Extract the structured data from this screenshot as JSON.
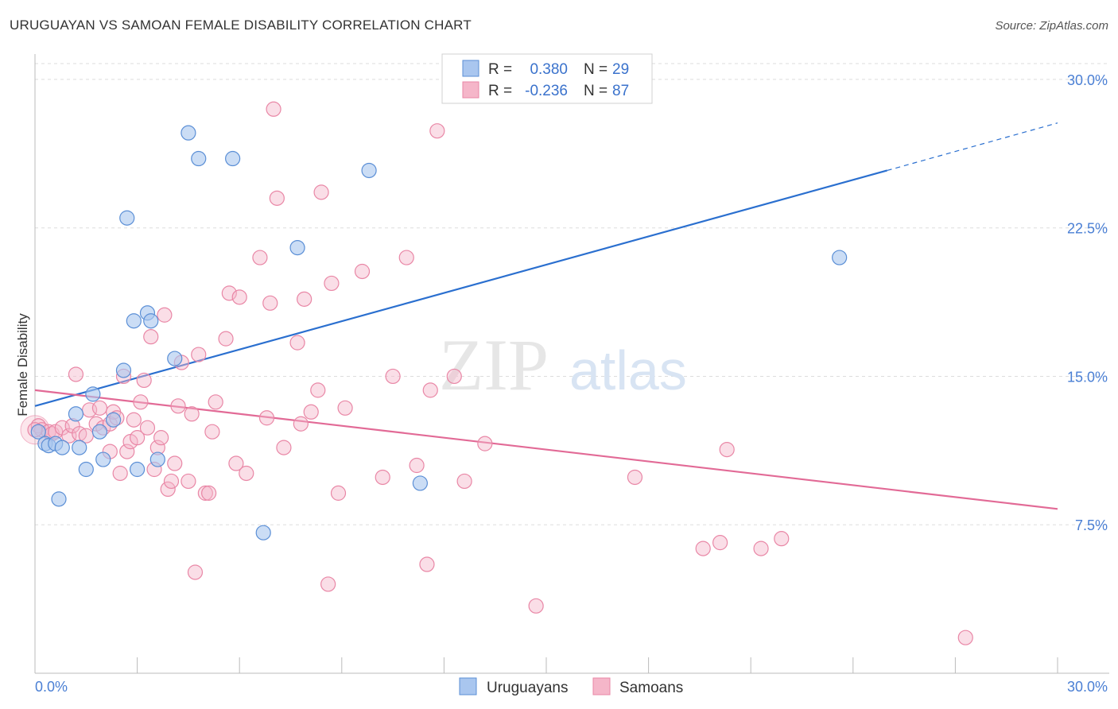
{
  "title": "URUGUAYAN VS SAMOAN FEMALE DISABILITY CORRELATION CHART",
  "source": "Source: ZipAtlas.com",
  "watermark": {
    "zip": "ZIP",
    "atlas": "atlas"
  },
  "colors": {
    "blue_fill": "#a9c6ef",
    "blue_stroke": "#5b8fd6",
    "blue_line": "#2a6fcf",
    "pink_fill": "#f5b6c9",
    "pink_stroke": "#e987a6",
    "pink_line": "#e26a96",
    "grid": "#dddddd",
    "tick_text": "#4a7fd4"
  },
  "legend": {
    "rows": [
      {
        "r_label": "R =",
        "r_value": "0.380",
        "n_label": "N =",
        "n_value": "29"
      },
      {
        "r_label": "R =",
        "r_value": "-0.236",
        "n_label": "N =",
        "n_value": "87"
      }
    ]
  },
  "bottom_legend": {
    "items": [
      "Uruguayans",
      "Samoans"
    ]
  },
  "chart_data": {
    "type": "scatter",
    "title": "URUGUAYAN VS SAMOAN FEMALE DISABILITY CORRELATION CHART",
    "xlabel": "",
    "ylabel": "Female Disability",
    "xlim": [
      0,
      30
    ],
    "ylim": [
      0,
      30.8
    ],
    "x_tick_labels": [
      "0.0%",
      "30.0%"
    ],
    "y_ticks": [
      7.5,
      15.0,
      22.5,
      30.0
    ],
    "y_tick_labels": [
      "7.5%",
      "15.0%",
      "22.5%",
      "30.0%"
    ],
    "grid": true,
    "series": [
      {
        "name": "Uruguayans",
        "r": 0.38,
        "n": 29,
        "trend": {
          "x0": 0,
          "y0": 13.5,
          "x1": 25,
          "y1": 25.4,
          "dash_x_end": 30,
          "dash_y_end": 27.8
        },
        "points": [
          [
            0.1,
            12.2
          ],
          [
            0.3,
            11.6
          ],
          [
            0.4,
            11.5
          ],
          [
            0.6,
            11.6
          ],
          [
            0.8,
            11.4
          ],
          [
            0.7,
            8.8
          ],
          [
            1.2,
            13.1
          ],
          [
            1.3,
            11.4
          ],
          [
            1.5,
            10.3
          ],
          [
            1.7,
            14.1
          ],
          [
            1.9,
            12.2
          ],
          [
            2.0,
            10.8
          ],
          [
            2.3,
            12.8
          ],
          [
            2.6,
            15.3
          ],
          [
            2.7,
            23.0
          ],
          [
            2.9,
            17.8
          ],
          [
            3.0,
            10.3
          ],
          [
            3.3,
            18.2
          ],
          [
            3.4,
            17.8
          ],
          [
            3.6,
            10.8
          ],
          [
            4.1,
            15.9
          ],
          [
            4.5,
            27.3
          ],
          [
            4.8,
            26.0
          ],
          [
            5.8,
            26.0
          ],
          [
            6.7,
            7.1
          ],
          [
            7.7,
            21.5
          ],
          [
            9.8,
            25.4
          ],
          [
            11.3,
            9.6
          ],
          [
            23.6,
            21.0
          ]
        ]
      },
      {
        "name": "Samoans",
        "r": -0.236,
        "n": 87,
        "trend": {
          "x0": 0,
          "y0": 14.3,
          "x1": 30,
          "y1": 8.3
        },
        "points": [
          [
            0.1,
            12.5
          ],
          [
            0.2,
            12.3
          ],
          [
            0.4,
            12.2
          ],
          [
            0.5,
            12.1
          ],
          [
            0.6,
            12.2
          ],
          [
            0.8,
            12.4
          ],
          [
            1.0,
            12.0
          ],
          [
            1.1,
            12.5
          ],
          [
            1.3,
            12.1
          ],
          [
            1.5,
            12.0
          ],
          [
            1.6,
            13.3
          ],
          [
            1.8,
            12.6
          ],
          [
            1.2,
            15.1
          ],
          [
            1.9,
            13.4
          ],
          [
            2.0,
            12.4
          ],
          [
            2.2,
            11.2
          ],
          [
            2.2,
            12.6
          ],
          [
            2.3,
            13.2
          ],
          [
            2.4,
            12.9
          ],
          [
            2.5,
            10.1
          ],
          [
            2.6,
            15.0
          ],
          [
            2.7,
            11.2
          ],
          [
            2.8,
            11.7
          ],
          [
            2.9,
            12.8
          ],
          [
            3.0,
            11.9
          ],
          [
            3.1,
            13.7
          ],
          [
            3.2,
            14.8
          ],
          [
            3.3,
            12.4
          ],
          [
            3.4,
            17.0
          ],
          [
            3.5,
            10.3
          ],
          [
            3.6,
            11.4
          ],
          [
            3.7,
            11.9
          ],
          [
            3.8,
            18.1
          ],
          [
            3.9,
            9.3
          ],
          [
            4.0,
            9.7
          ],
          [
            4.1,
            10.6
          ],
          [
            4.2,
            13.5
          ],
          [
            4.3,
            15.7
          ],
          [
            4.5,
            9.7
          ],
          [
            4.6,
            13.1
          ],
          [
            4.8,
            16.1
          ],
          [
            5.0,
            9.1
          ],
          [
            5.1,
            9.1
          ],
          [
            5.2,
            12.2
          ],
          [
            5.3,
            13.7
          ],
          [
            5.6,
            16.9
          ],
          [
            5.7,
            19.2
          ],
          [
            5.9,
            10.6
          ],
          [
            6.0,
            19.0
          ],
          [
            6.2,
            10.1
          ],
          [
            6.6,
            21.0
          ],
          [
            6.8,
            12.9
          ],
          [
            6.9,
            18.7
          ],
          [
            7.0,
            28.5
          ],
          [
            7.1,
            24.0
          ],
          [
            7.3,
            11.4
          ],
          [
            7.7,
            16.7
          ],
          [
            7.8,
            12.6
          ],
          [
            7.9,
            18.9
          ],
          [
            8.1,
            13.2
          ],
          [
            8.3,
            14.3
          ],
          [
            8.4,
            24.3
          ],
          [
            8.6,
            4.5
          ],
          [
            8.7,
            19.7
          ],
          [
            8.9,
            9.1
          ],
          [
            9.1,
            13.4
          ],
          [
            9.6,
            20.3
          ],
          [
            10.2,
            9.9
          ],
          [
            10.5,
            15.0
          ],
          [
            10.9,
            21.0
          ],
          [
            11.2,
            10.5
          ],
          [
            11.5,
            5.5
          ],
          [
            11.6,
            14.3
          ],
          [
            11.8,
            27.4
          ],
          [
            12.3,
            15.0
          ],
          [
            12.6,
            9.7
          ],
          [
            13.2,
            11.6
          ],
          [
            14.7,
            3.4
          ],
          [
            17.6,
            9.9
          ],
          [
            4.7,
            5.1
          ],
          [
            19.6,
            6.3
          ],
          [
            20.1,
            6.6
          ],
          [
            20.3,
            11.3
          ],
          [
            21.3,
            6.3
          ],
          [
            21.9,
            6.8
          ],
          [
            27.3,
            1.8
          ],
          [
            0.0,
            12.3
          ]
        ]
      }
    ]
  }
}
